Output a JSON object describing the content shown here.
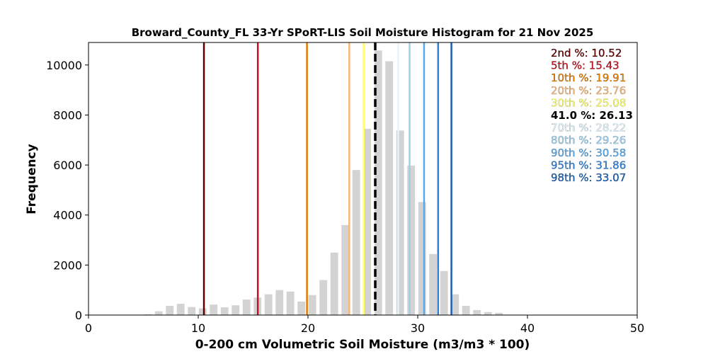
{
  "chart_data": {
    "type": "bar",
    "title": "Broward_County_FL 33-Yr SPoRT-LIS Soil Moisture Histogram for 21 Nov 2025",
    "xlabel": "0-200 cm Volumetric Soil Moisture (m3/m3 * 100)",
    "ylabel": "Frequency",
    "xlim": [
      0,
      50
    ],
    "ylim": [
      0,
      10900
    ],
    "x_ticks": [
      0,
      10,
      20,
      30,
      40,
      50
    ],
    "y_ticks": [
      0,
      2000,
      4000,
      6000,
      8000,
      10000
    ],
    "grid": false,
    "bar_color": "#d3d3d3",
    "bins": [
      {
        "x": 5.4,
        "value": 30
      },
      {
        "x": 6.4,
        "value": 150
      },
      {
        "x": 7.4,
        "value": 370
      },
      {
        "x": 8.4,
        "value": 450
      },
      {
        "x": 9.4,
        "value": 320
      },
      {
        "x": 10.4,
        "value": 270
      },
      {
        "x": 11.4,
        "value": 420
      },
      {
        "x": 12.4,
        "value": 310
      },
      {
        "x": 13.4,
        "value": 390
      },
      {
        "x": 14.4,
        "value": 620
      },
      {
        "x": 15.4,
        "value": 700
      },
      {
        "x": 16.4,
        "value": 830
      },
      {
        "x": 17.4,
        "value": 1000
      },
      {
        "x": 18.4,
        "value": 940
      },
      {
        "x": 19.4,
        "value": 540
      },
      {
        "x": 20.4,
        "value": 800
      },
      {
        "x": 21.4,
        "value": 1400
      },
      {
        "x": 22.4,
        "value": 2500
      },
      {
        "x": 23.4,
        "value": 3600
      },
      {
        "x": 24.4,
        "value": 5800
      },
      {
        "x": 25.4,
        "value": 7450
      },
      {
        "x": 26.4,
        "value": 10580
      },
      {
        "x": 27.4,
        "value": 10150
      },
      {
        "x": 28.4,
        "value": 7380
      },
      {
        "x": 29.4,
        "value": 5980
      },
      {
        "x": 30.4,
        "value": 4520
      },
      {
        "x": 31.4,
        "value": 2440
      },
      {
        "x": 32.4,
        "value": 1760
      },
      {
        "x": 33.4,
        "value": 830
      },
      {
        "x": 34.4,
        "value": 370
      },
      {
        "x": 35.4,
        "value": 200
      },
      {
        "x": 36.4,
        "value": 120
      },
      {
        "x": 37.4,
        "value": 90
      }
    ],
    "percentile_lines": [
      {
        "label": "2nd %: 10.52",
        "value": 10.52,
        "color": "#5c0000",
        "style": "solid"
      },
      {
        "label": "5th %: 15.43",
        "value": 15.43,
        "color": "#c1121f",
        "style": "solid"
      },
      {
        "label": "10th %: 19.91",
        "value": 19.91,
        "color": "#e07b00",
        "style": "solid"
      },
      {
        "label": "20th %: 23.76",
        "value": 23.76,
        "color": "#f5b779",
        "style": "solid"
      },
      {
        "label": "30th %: 25.08",
        "value": 25.08,
        "color": "#ffff66",
        "style": "solid"
      },
      {
        "label": "41.0 %: 26.13",
        "value": 26.13,
        "color": "#000000",
        "style": "dashed"
      },
      {
        "label": "70th %: 28.22",
        "value": 28.22,
        "color": "#dff6ff",
        "style": "solid"
      },
      {
        "label": "80th %: 29.26",
        "value": 29.26,
        "color": "#9ccff0",
        "style": "solid"
      },
      {
        "label": "90th %: 30.58",
        "value": 30.58,
        "color": "#5aa8e6",
        "style": "solid"
      },
      {
        "label": "95th %: 31.86",
        "value": 31.86,
        "color": "#2f7fd6",
        "style": "solid"
      },
      {
        "label": "98th %: 33.07",
        "value": 33.07,
        "color": "#1a5fb4",
        "style": "solid"
      }
    ],
    "legend_placement": "top-right"
  }
}
